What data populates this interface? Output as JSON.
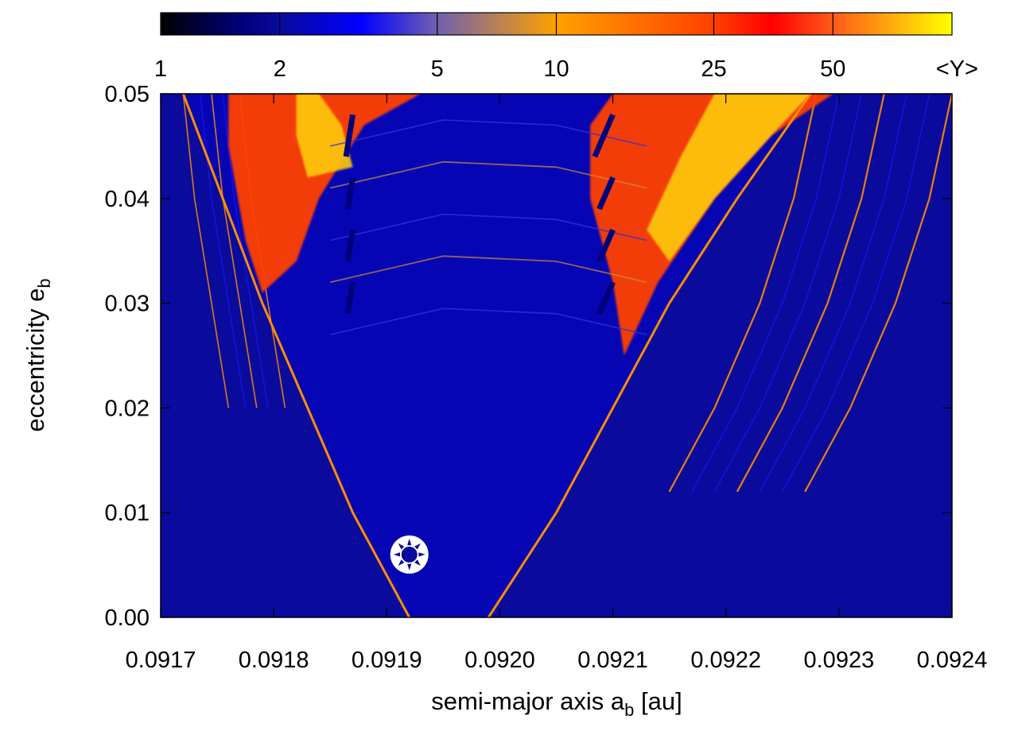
{
  "chart_data": {
    "type": "heatmap",
    "title": "",
    "xlabel": "semi-major axis a",
    "xlabel_sub": "b",
    "xlabel_unit": " [au]",
    "ylabel": "eccentricity e",
    "ylabel_sub": "b",
    "xlim": [
      0.0917,
      0.0924
    ],
    "ylim": [
      0.0,
      0.05
    ],
    "x_ticks": [
      {
        "value": 0.0917,
        "label": "0.0917"
      },
      {
        "value": 0.0918,
        "label": "0.0918"
      },
      {
        "value": 0.0919,
        "label": "0.0919"
      },
      {
        "value": 0.092,
        "label": "0.0920"
      },
      {
        "value": 0.0921,
        "label": "0.0921"
      },
      {
        "value": 0.0922,
        "label": "0.0922"
      },
      {
        "value": 0.0923,
        "label": "0.0923"
      },
      {
        "value": 0.0924,
        "label": "0.0924"
      }
    ],
    "y_ticks": [
      {
        "value": 0.0,
        "label": "0.00"
      },
      {
        "value": 0.01,
        "label": "0.01"
      },
      {
        "value": 0.02,
        "label": "0.02"
      },
      {
        "value": 0.03,
        "label": "0.03"
      },
      {
        "value": 0.04,
        "label": "0.04"
      },
      {
        "value": 0.05,
        "label": "0.05"
      }
    ],
    "colorbar": {
      "label": "<Y>",
      "scale": "log",
      "range": [
        1,
        100
      ],
      "ticks": [
        {
          "value": 1,
          "label": "1"
        },
        {
          "value": 2,
          "label": "2"
        },
        {
          "value": 5,
          "label": "5"
        },
        {
          "value": 10,
          "label": "10"
        },
        {
          "value": 25,
          "label": "25"
        },
        {
          "value": 50,
          "label": "50"
        }
      ],
      "stops": [
        {
          "value": 1,
          "color": "#000000"
        },
        {
          "value": 1.6,
          "color": "#00007a"
        },
        {
          "value": 2,
          "color": "#0a0a9c"
        },
        {
          "value": 3.2,
          "color": "#0000ff"
        },
        {
          "value": 5,
          "color": "#7060b0"
        },
        {
          "value": 10,
          "color": "#ffa000"
        },
        {
          "value": 25,
          "color": "#ff4000"
        },
        {
          "value": 35,
          "color": "#ff0000"
        },
        {
          "value": 50,
          "color": "#ff5a1a"
        },
        {
          "value": 100,
          "color": "#ffff00"
        }
      ]
    },
    "background_value": 2,
    "features": {
      "left_wedge_edge": [
        [
          0.09192,
          0.0
        ],
        [
          0.09187,
          0.01
        ],
        [
          0.09183,
          0.02
        ],
        [
          0.09179,
          0.03
        ],
        [
          0.091755,
          0.04
        ],
        [
          0.09172,
          0.05
        ]
      ],
      "right_wedge_edge": [
        [
          0.09199,
          0.0
        ],
        [
          0.09205,
          0.01
        ],
        [
          0.0921,
          0.02
        ],
        [
          0.09215,
          0.03
        ],
        [
          0.09221,
          0.04
        ],
        [
          0.092275,
          0.05
        ]
      ],
      "chaotic_lobes": [
        {
          "side": "left",
          "value": 25,
          "points": [
            [
              0.09176,
              0.05
            ],
            [
              0.09193,
              0.05
            ],
            [
              0.09188,
              0.047
            ],
            [
              0.09184,
              0.04
            ],
            [
              0.09182,
              0.034
            ],
            [
              0.09179,
              0.031
            ],
            [
              0.091775,
              0.036
            ],
            [
              0.09176,
              0.045
            ]
          ]
        },
        {
          "side": "right",
          "value": 25,
          "points": [
            [
              0.0921,
              0.05
            ],
            [
              0.092295,
              0.05
            ],
            [
              0.09224,
              0.046
            ],
            [
              0.09219,
              0.04
            ],
            [
              0.09214,
              0.032
            ],
            [
              0.09211,
              0.025
            ],
            [
              0.0921,
              0.032
            ],
            [
              0.09208,
              0.04
            ],
            [
              0.09208,
              0.047
            ]
          ]
        }
      ],
      "yellow_patches": [
        {
          "value": 80,
          "points": [
            [
              0.09184,
              0.05
            ],
            [
              0.09186,
              0.047
            ],
            [
              0.09187,
              0.043
            ],
            [
              0.09183,
              0.042
            ],
            [
              0.09182,
              0.046
            ],
            [
              0.09182,
              0.05
            ]
          ]
        },
        {
          "value": 80,
          "points": [
            [
              0.09219,
              0.05
            ],
            [
              0.092275,
              0.05
            ],
            [
              0.09224,
              0.046
            ],
            [
              0.09219,
              0.04
            ],
            [
              0.09215,
              0.034
            ],
            [
              0.09213,
              0.037
            ],
            [
              0.09216,
              0.044
            ]
          ]
        }
      ],
      "resonance_strips": [
        {
          "x": 0.09187,
          "value": 1.6
        },
        {
          "x": 0.0921,
          "value": 1.6
        }
      ],
      "fan_lines_left": [
        0.09172,
        0.091735,
        0.091745,
        0.091755,
        0.09177
      ],
      "fan_lines_right": [
        0.09228,
        0.0923,
        0.09232,
        0.09234,
        0.09236,
        0.09238,
        0.0924
      ]
    },
    "marker": {
      "x": 0.09192,
      "y": 0.006,
      "symbol": "sun-symbol"
    }
  }
}
